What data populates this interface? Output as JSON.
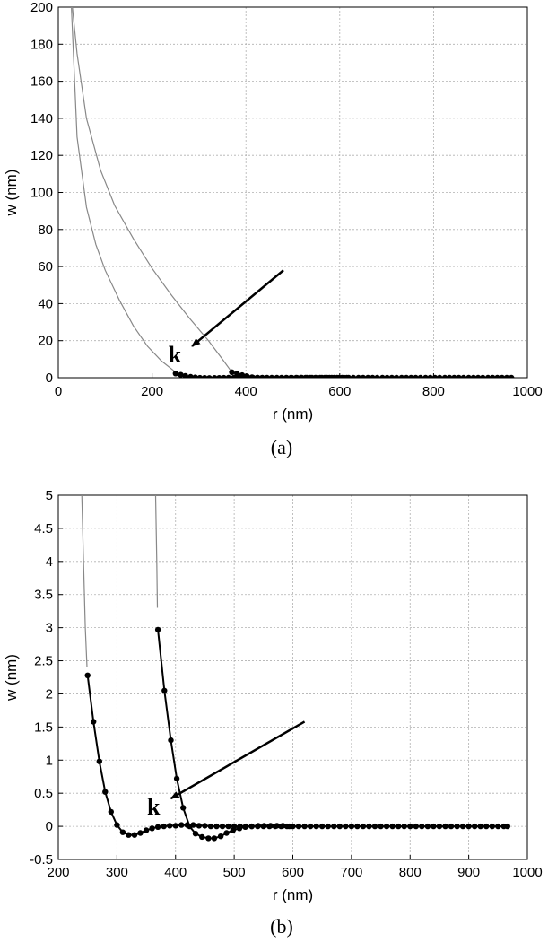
{
  "chart_data": [
    {
      "type": "line",
      "panel": "a",
      "caption": "(a)",
      "xlabel": "r (nm)",
      "ylabel": "w (nm)",
      "xlim": [
        0,
        1000
      ],
      "ylim": [
        0,
        200
      ],
      "xticks": [
        "0",
        "200",
        "400",
        "600",
        "800",
        "1000"
      ],
      "yticks": [
        "0",
        "20",
        "40",
        "60",
        "80",
        "100",
        "120",
        "140",
        "160",
        "180",
        "200"
      ],
      "grid": true,
      "series": [
        {
          "curve": [
            [
              28,
              200
            ],
            [
              40,
              130
            ],
            [
              60,
              92
            ],
            [
              80,
              72
            ],
            [
              100,
              58
            ],
            [
              130,
              42
            ],
            [
              160,
              28
            ],
            [
              190,
              17
            ],
            [
              220,
              9
            ],
            [
              250,
              3
            ]
          ],
          "markers": [
            [
              250,
              2.3
            ],
            [
              261,
              1.6
            ],
            [
              271,
              1.0
            ],
            [
              282,
              0.5
            ],
            [
              292,
              0.2
            ],
            [
              302,
              -0.05
            ],
            [
              312,
              -0.12
            ],
            [
              322,
              -0.14
            ],
            [
              333,
              -0.12
            ],
            [
              343,
              -0.08
            ],
            [
              353,
              -0.05
            ],
            [
              363,
              -0.02
            ],
            [
              374,
              0
            ],
            [
              384,
              0.01
            ],
            [
              394,
              0.01
            ],
            [
              404,
              0.02
            ],
            [
              415,
              0.02
            ],
            [
              425,
              0.02
            ],
            [
              435,
              0.01
            ],
            [
              445,
              0.01
            ],
            [
              455,
              0.01
            ],
            [
              466,
              0
            ],
            [
              476,
              0
            ],
            [
              486,
              0
            ],
            [
              496,
              0
            ],
            [
              507,
              0
            ],
            [
              517,
              0
            ],
            [
              527,
              0
            ],
            [
              537,
              0
            ],
            [
              548,
              0
            ],
            [
              558,
              0
            ],
            [
              568,
              0
            ],
            [
              578,
              0
            ],
            [
              588,
              0
            ],
            [
              599,
              0
            ],
            [
              609,
              0
            ],
            [
              619,
              0
            ],
            [
              629,
              0
            ],
            [
              640,
              0
            ],
            [
              650,
              0
            ],
            [
              660,
              0
            ],
            [
              670,
              0
            ],
            [
              680,
              0
            ],
            [
              691,
              0
            ],
            [
              701,
              0
            ],
            [
              711,
              0
            ],
            [
              721,
              0
            ],
            [
              732,
              0
            ],
            [
              742,
              0
            ],
            [
              752,
              0
            ],
            [
              762,
              0
            ],
            [
              772,
              0
            ],
            [
              783,
              0
            ],
            [
              793,
              0
            ],
            [
              803,
              0
            ],
            [
              813,
              0
            ],
            [
              824,
              0
            ],
            [
              834,
              0
            ],
            [
              844,
              0
            ],
            [
              854,
              0
            ],
            [
              864,
              0
            ],
            [
              875,
              0
            ],
            [
              885,
              0
            ],
            [
              895,
              0
            ],
            [
              905,
              0
            ],
            [
              916,
              0
            ],
            [
              926,
              0
            ],
            [
              936,
              0
            ],
            [
              946,
              0
            ],
            [
              956,
              0
            ],
            [
              966,
              0
            ]
          ]
        },
        {
          "curve": [
            [
              30,
              200
            ],
            [
              40,
              175
            ],
            [
              60,
              140
            ],
            [
              90,
              112
            ],
            [
              120,
              93
            ],
            [
              160,
              75
            ],
            [
              200,
              59
            ],
            [
              240,
              45
            ],
            [
              280,
              32
            ],
            [
              320,
              20
            ],
            [
              350,
              10
            ],
            [
              370,
              3
            ]
          ],
          "markers": [
            [
              370,
              3.0
            ],
            [
              381,
              2.2
            ],
            [
              392,
              1.4
            ],
            [
              402,
              0.8
            ],
            [
              413,
              0.3
            ],
            [
              424,
              0.0
            ],
            [
              434,
              -0.1
            ],
            [
              445,
              -0.15
            ],
            [
              456,
              -0.17
            ],
            [
              466,
              -0.17
            ],
            [
              477,
              -0.14
            ],
            [
              487,
              -0.1
            ],
            [
              498,
              -0.06
            ],
            [
              509,
              -0.03
            ],
            [
              519,
              -0.01
            ],
            [
              530,
              0
            ],
            [
              541,
              0.01
            ],
            [
              551,
              0.01
            ],
            [
              562,
              0.01
            ],
            [
              573,
              0.01
            ],
            [
              583,
              0.01
            ],
            [
              594,
              0
            ],
            [
              605,
              0
            ],
            [
              615,
              0
            ]
          ]
        }
      ],
      "annotation": {
        "text": "k",
        "tail": [
          480,
          58
        ],
        "head": [
          285,
          17
        ]
      }
    },
    {
      "type": "line",
      "panel": "b",
      "caption": "(b)",
      "xlabel": "r (nm)",
      "ylabel": "w (nm)",
      "xlim": [
        200,
        1000
      ],
      "ylim": [
        -0.5,
        5
      ],
      "xticks": [
        "200",
        "300",
        "400",
        "500",
        "600",
        "700",
        "800",
        "900",
        "1000"
      ],
      "yticks": [
        "-0.5",
        "0",
        "0.5",
        "1",
        "1.5",
        "2",
        "2.5",
        "3",
        "3.5",
        "4",
        "4.5",
        "5"
      ],
      "grid": true,
      "series": [
        {
          "curve": [
            [
              240,
              5.0
            ],
            [
              243,
              4.0
            ],
            [
              246,
              3.0
            ],
            [
              249,
              2.4
            ]
          ],
          "markers": [
            [
              250,
              2.28
            ],
            [
              260,
              1.58
            ],
            [
              270,
              0.98
            ],
            [
              280,
              0.52
            ],
            [
              290,
              0.22
            ],
            [
              300,
              0.02
            ],
            [
              310,
              -0.09
            ],
            [
              320,
              -0.13
            ],
            [
              330,
              -0.13
            ],
            [
              340,
              -0.1
            ],
            [
              350,
              -0.06
            ],
            [
              360,
              -0.03
            ],
            [
              370,
              -0.01
            ],
            [
              380,
              0.0
            ],
            [
              390,
              0.01
            ],
            [
              400,
              0.01
            ],
            [
              410,
              0.02
            ],
            [
              420,
              0.02
            ],
            [
              430,
              0.02
            ],
            [
              440,
              0.01
            ],
            [
              450,
              0.01
            ],
            [
              460,
              0.0
            ],
            [
              470,
              0
            ],
            [
              480,
              0
            ],
            [
              490,
              0
            ],
            [
              500,
              0
            ],
            [
              510,
              0
            ],
            [
              520,
              0
            ],
            [
              530,
              0
            ],
            [
              540,
              0
            ],
            [
              550,
              0
            ],
            [
              560,
              0
            ],
            [
              570,
              0
            ],
            [
              580,
              0
            ],
            [
              590,
              0
            ],
            [
              600,
              0
            ],
            [
              610,
              0
            ],
            [
              620,
              0
            ],
            [
              630,
              0
            ],
            [
              640,
              0
            ],
            [
              650,
              0
            ],
            [
              660,
              0
            ],
            [
              670,
              0
            ],
            [
              680,
              0
            ],
            [
              690,
              0
            ],
            [
              700,
              0
            ],
            [
              710,
              0
            ],
            [
              720,
              0
            ],
            [
              730,
              0
            ],
            [
              740,
              0
            ],
            [
              750,
              0
            ],
            [
              760,
              0
            ],
            [
              770,
              0
            ],
            [
              780,
              0
            ],
            [
              790,
              0
            ],
            [
              800,
              0
            ],
            [
              810,
              0
            ],
            [
              820,
              0
            ],
            [
              830,
              0
            ],
            [
              840,
              0
            ],
            [
              850,
              0
            ],
            [
              860,
              0
            ],
            [
              870,
              0
            ],
            [
              880,
              0
            ],
            [
              890,
              0
            ],
            [
              900,
              0
            ],
            [
              910,
              0
            ],
            [
              920,
              0
            ],
            [
              930,
              0
            ],
            [
              940,
              0
            ],
            [
              950,
              0
            ],
            [
              960,
              0
            ],
            [
              966,
              0
            ]
          ]
        },
        {
          "curve": [
            [
              366,
              5.0
            ],
            [
              368,
              4.0
            ],
            [
              369,
              3.3
            ]
          ],
          "markers": [
            [
              370,
              2.97
            ],
            [
              381,
              2.05
            ],
            [
              392,
              1.3
            ],
            [
              402,
              0.72
            ],
            [
              413,
              0.28
            ],
            [
              424,
              0.0
            ],
            [
              434,
              -0.11
            ],
            [
              445,
              -0.16
            ],
            [
              456,
              -0.18
            ],
            [
              466,
              -0.18
            ],
            [
              477,
              -0.15
            ],
            [
              487,
              -0.1
            ],
            [
              498,
              -0.06
            ],
            [
              509,
              -0.03
            ],
            [
              519,
              -0.01
            ],
            [
              530,
              0.0
            ],
            [
              541,
              0.01
            ],
            [
              551,
              0.01
            ],
            [
              562,
              0.01
            ],
            [
              573,
              0.01
            ],
            [
              583,
              0.01
            ],
            [
              594,
              0.0
            ]
          ]
        }
      ],
      "annotation": {
        "text": "k",
        "tail": [
          620,
          1.58
        ],
        "head": [
          392,
          0.42
        ]
      }
    }
  ]
}
